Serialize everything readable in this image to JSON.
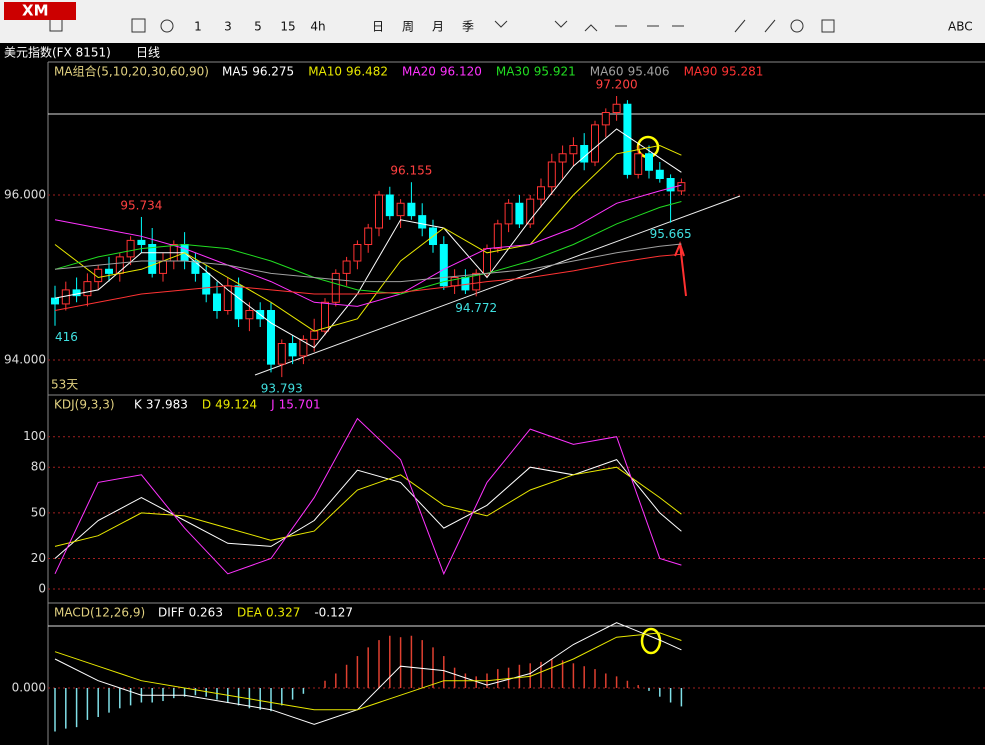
{
  "toolbar": {
    "logo": "XM",
    "items": [
      "1",
      "3",
      "5",
      "15",
      "4h",
      "日",
      "周",
      "月",
      "季",
      "ABC"
    ]
  },
  "header": {
    "symbol": "美元指数(FX 8151)",
    "period": "日线"
  },
  "price_panel": {
    "title": "MA组合(5,10,20,30,60,90)",
    "legend": [
      {
        "name": "MA5",
        "value": 96.275,
        "color": "#ffffff"
      },
      {
        "name": "MA10",
        "value": 96.482,
        "color": "#e8e800"
      },
      {
        "name": "MA20",
        "value": 96.12,
        "label": "96.120",
        "color": "#ff33ff"
      },
      {
        "name": "MA30",
        "value": 95.921,
        "color": "#22dd22"
      },
      {
        "name": "MA60",
        "value": 95.406,
        "color": "#a0a0a0"
      },
      {
        "name": "MA90",
        "value": 95.281,
        "color": "#ff3333"
      }
    ],
    "ylim": [
      93.576,
      97.6
    ],
    "yticks": [
      {
        "value": 96,
        "label": "96.000"
      },
      {
        "value": 94,
        "label": "94.000"
      }
    ],
    "candles": [
      [
        94.75,
        94.9,
        94.416,
        94.68
      ],
      [
        94.68,
        94.95,
        94.6,
        94.85
      ],
      [
        94.85,
        95.0,
        94.7,
        94.78
      ],
      [
        94.78,
        95.05,
        94.65,
        94.95
      ],
      [
        94.95,
        95.15,
        94.85,
        95.1
      ],
      [
        95.1,
        95.25,
        94.95,
        95.05
      ],
      [
        95.05,
        95.3,
        94.95,
        95.25
      ],
      [
        95.25,
        95.5,
        95.15,
        95.45
      ],
      [
        95.45,
        95.734,
        95.3,
        95.4
      ],
      [
        95.4,
        95.6,
        95.0,
        95.05
      ],
      [
        95.05,
        95.3,
        94.95,
        95.2
      ],
      [
        95.2,
        95.45,
        95.1,
        95.4
      ],
      [
        95.4,
        95.55,
        95.1,
        95.2
      ],
      [
        95.2,
        95.3,
        94.95,
        95.05
      ],
      [
        95.05,
        95.15,
        94.7,
        94.8
      ],
      [
        94.8,
        94.95,
        94.5,
        94.6
      ],
      [
        94.6,
        95.0,
        94.55,
        94.9
      ],
      [
        94.9,
        95.0,
        94.4,
        94.5
      ],
      [
        94.5,
        94.7,
        94.35,
        94.6
      ],
      [
        94.6,
        94.7,
        94.4,
        94.5
      ],
      [
        94.6,
        94.7,
        93.85,
        93.95
      ],
      [
        93.95,
        94.25,
        93.793,
        94.2
      ],
      [
        94.2,
        94.3,
        93.95,
        94.05
      ],
      [
        94.05,
        94.3,
        93.95,
        94.25
      ],
      [
        94.25,
        94.5,
        94.1,
        94.35
      ],
      [
        94.35,
        94.75,
        94.3,
        94.7
      ],
      [
        94.7,
        95.1,
        94.65,
        95.05
      ],
      [
        95.05,
        95.25,
        94.9,
        95.2
      ],
      [
        95.2,
        95.45,
        95.1,
        95.4
      ],
      [
        95.4,
        95.65,
        95.3,
        95.6
      ],
      [
        95.6,
        96.05,
        95.5,
        96.0
      ],
      [
        96.0,
        96.1,
        95.7,
        95.75
      ],
      [
        95.75,
        95.95,
        95.6,
        95.9
      ],
      [
        95.9,
        96.155,
        95.7,
        95.75
      ],
      [
        95.75,
        95.9,
        95.5,
        95.6
      ],
      [
        95.6,
        95.7,
        95.3,
        95.4
      ],
      [
        95.4,
        95.5,
        94.85,
        94.9
      ],
      [
        94.9,
        95.1,
        94.8,
        95.0
      ],
      [
        95.0,
        95.1,
        94.8,
        94.85
      ],
      [
        94.85,
        95.1,
        94.772,
        95.05
      ],
      [
        95.05,
        95.4,
        95.0,
        95.35
      ],
      [
        95.35,
        95.7,
        95.3,
        95.65
      ],
      [
        95.65,
        95.95,
        95.55,
        95.9
      ],
      [
        95.9,
        96.0,
        95.6,
        95.65
      ],
      [
        95.65,
        96.0,
        95.6,
        95.95
      ],
      [
        95.95,
        96.2,
        95.85,
        96.1
      ],
      [
        96.1,
        96.5,
        96.0,
        96.4
      ],
      [
        96.4,
        96.6,
        96.2,
        96.5
      ],
      [
        96.5,
        96.7,
        96.35,
        96.6
      ],
      [
        96.6,
        96.75,
        96.3,
        96.4
      ],
      [
        96.4,
        96.9,
        96.35,
        96.85
      ],
      [
        96.85,
        97.05,
        96.7,
        97.0
      ],
      [
        97.0,
        97.2,
        96.9,
        97.1
      ],
      [
        97.1,
        97.15,
        96.2,
        96.25
      ],
      [
        96.25,
        96.6,
        96.2,
        96.5
      ],
      [
        96.5,
        96.6,
        96.2,
        96.3
      ],
      [
        96.3,
        96.4,
        96.15,
        96.2
      ],
      [
        96.2,
        96.25,
        95.665,
        96.05
      ],
      [
        96.05,
        96.2,
        96.0,
        96.15
      ]
    ],
    "up_color": "#ff3333",
    "down_color": "#00ffff",
    "ma_x": [
      0,
      4,
      8,
      12,
      16,
      20,
      24,
      28,
      32,
      36,
      40,
      44,
      48,
      52,
      56,
      58
    ],
    "ma": [
      {
        "values": [
          94.75,
          94.85,
          95.3,
          95.3,
          94.85,
          94.45,
          94.15,
          94.8,
          95.7,
          95.6,
          95.0,
          95.7,
          96.35,
          96.8,
          96.45,
          96.275
        ]
      },
      {
        "values": [
          95.4,
          95.0,
          95.1,
          95.3,
          95.0,
          94.7,
          94.35,
          94.5,
          95.2,
          95.6,
          95.3,
          95.4,
          96.0,
          96.5,
          96.6,
          96.482
        ]
      },
      {
        "values": [
          95.7,
          95.6,
          95.5,
          95.35,
          95.15,
          94.95,
          94.7,
          94.65,
          94.8,
          95.1,
          95.35,
          95.4,
          95.6,
          95.9,
          96.05,
          96.12
        ]
      },
      {
        "values": [
          95.1,
          95.25,
          95.35,
          95.4,
          95.35,
          95.2,
          95.0,
          94.85,
          94.8,
          94.95,
          95.05,
          95.2,
          95.4,
          95.65,
          95.85,
          95.921
        ]
      },
      {
        "values": [
          95.1,
          95.15,
          95.2,
          95.2,
          95.15,
          95.05,
          95.0,
          94.95,
          94.95,
          95.0,
          95.05,
          95.1,
          95.2,
          95.3,
          95.38,
          95.406
        ]
      },
      {
        "values": [
          94.6,
          94.7,
          94.8,
          94.85,
          94.9,
          94.85,
          94.8,
          94.8,
          94.82,
          94.88,
          94.95,
          95.0,
          95.08,
          95.18,
          95.26,
          95.281
        ]
      }
    ],
    "annotations": [
      {
        "value": 97.2,
        "label": "97.200"
      },
      {
        "value": 96.155
      },
      {
        "value": 95.734
      },
      {
        "value": 94.772
      },
      {
        "value": 93.793
      },
      {
        "value": 95.665
      },
      {
        "value": 94.416,
        "label": "416"
      }
    ],
    "days": "53天"
  },
  "kdj_panel": {
    "title": "KDJ(9,3,3)",
    "ylim": [
      -9.2,
      126.1
    ],
    "yticks": [
      100,
      80,
      50,
      20,
      0
    ],
    "x": [
      0,
      4,
      8,
      12,
      16,
      20,
      24,
      28,
      32,
      36,
      40,
      44,
      48,
      52,
      56,
      58
    ],
    "series": [
      {
        "name": "K",
        "color": "#ffffff",
        "value": 37.983,
        "values": [
          20,
          45,
          60,
          45,
          30,
          28,
          45,
          78,
          70,
          40,
          55,
          80,
          75,
          85,
          50,
          37.983
        ]
      },
      {
        "name": "D",
        "color": "#e8e800",
        "value": 49.124,
        "values": [
          28,
          35,
          50,
          48,
          40,
          32,
          38,
          65,
          75,
          55,
          48,
          65,
          75,
          80,
          60,
          49.124
        ]
      },
      {
        "name": "J",
        "color": "#ff33ff",
        "value": 15.701,
        "values": [
          10,
          70,
          75,
          40,
          10,
          20,
          60,
          112,
          85,
          10,
          70,
          105,
          95,
          100,
          20,
          15.701
        ]
      }
    ]
  },
  "macd_panel": {
    "title": "MACD(12,26,9)",
    "ylim": [
      -0.393,
      0.572
    ],
    "yticks": [
      {
        "value": 0,
        "label": "0.000"
      }
    ],
    "x": [
      0,
      4,
      8,
      12,
      16,
      20,
      24,
      28,
      32,
      36,
      40,
      44,
      48,
      52,
      56,
      58
    ],
    "series": [
      {
        "name": "DIFF",
        "color": "#ffffff",
        "value": 0.263,
        "values": [
          0.2,
          0.05,
          -0.05,
          -0.05,
          -0.1,
          -0.15,
          -0.25,
          -0.15,
          0.15,
          0.12,
          0.02,
          0.1,
          0.3,
          0.45,
          0.33,
          0.263
        ]
      },
      {
        "name": "DEA",
        "color": "#e8e800",
        "value": 0.327,
        "values": [
          0.25,
          0.15,
          0.05,
          0.0,
          -0.05,
          -0.1,
          -0.15,
          -0.15,
          -0.05,
          0.05,
          0.05,
          0.08,
          0.2,
          0.35,
          0.38,
          0.327
        ]
      }
    ],
    "macd_value": -0.127,
    "hist": [
      -0.3,
      -0.28,
      -0.27,
      -0.22,
      -0.2,
      -0.17,
      -0.14,
      -0.12,
      -0.1,
      -0.1,
      -0.09,
      -0.07,
      -0.06,
      -0.05,
      -0.06,
      -0.08,
      -0.1,
      -0.12,
      -0.14,
      -0.15,
      -0.16,
      -0.12,
      -0.08,
      -0.04,
      0.0,
      0.05,
      0.1,
      0.16,
      0.22,
      0.28,
      0.33,
      0.36,
      0.35,
      0.36,
      0.33,
      0.28,
      0.22,
      0.14,
      0.1,
      0.08,
      0.1,
      0.13,
      0.14,
      0.16,
      0.17,
      0.18,
      0.2,
      0.19,
      0.17,
      0.15,
      0.13,
      0.1,
      0.08,
      0.05,
      0.02,
      -0.02,
      -0.06,
      -0.1,
      -0.127
    ]
  }
}
